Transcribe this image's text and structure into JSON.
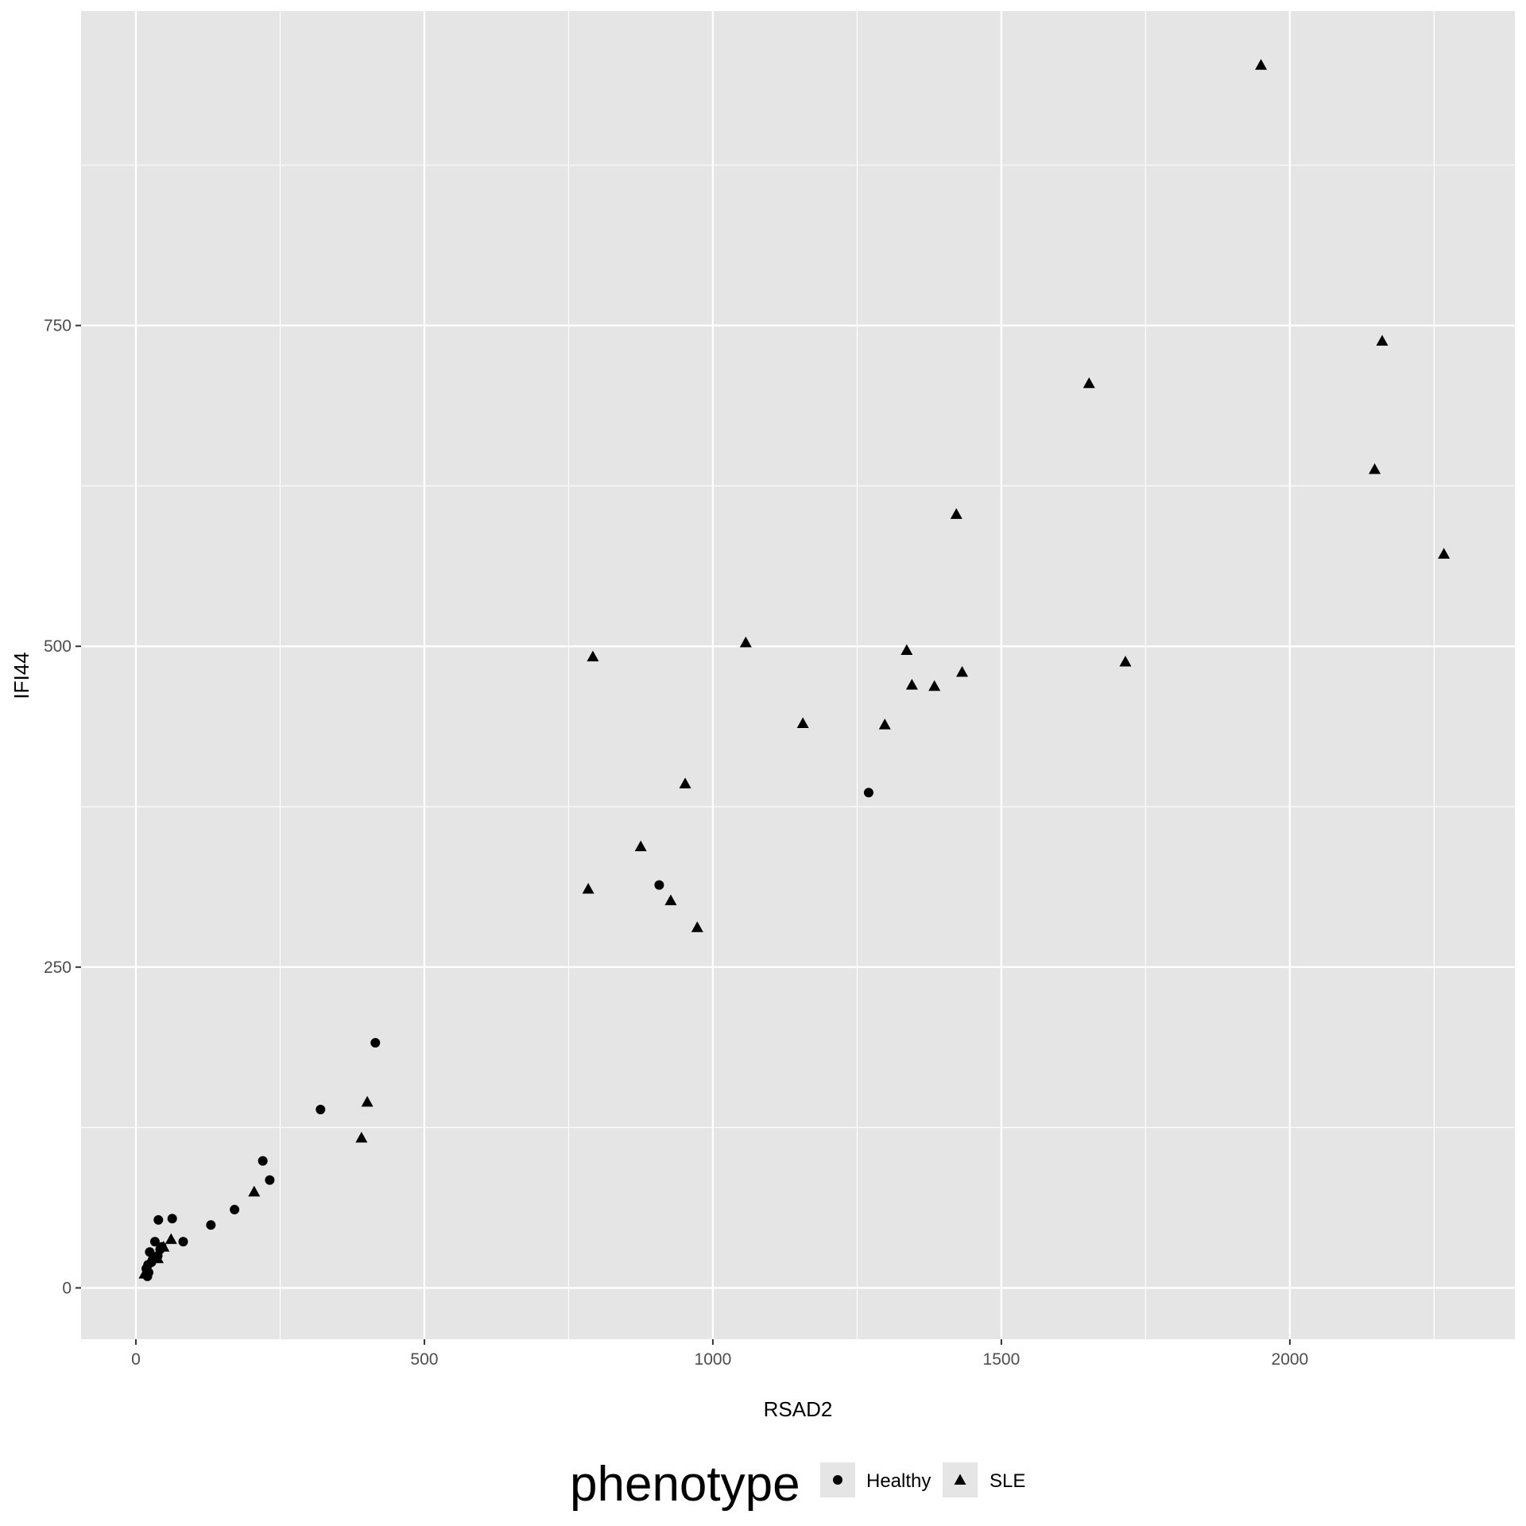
{
  "chart_data": {
    "type": "scatter",
    "title": "",
    "xlabel": "RSAD2",
    "ylabel": "IFI44",
    "xlim": [
      -95,
      2390
    ],
    "ylim": [
      -40,
      995
    ],
    "x_ticks": [
      0,
      500,
      1000,
      1500,
      2000
    ],
    "x_tick_labels": [
      "0",
      "500",
      "1000",
      "1500",
      "2000"
    ],
    "x_minor_ticks": [
      250,
      750,
      1250,
      1750,
      2250
    ],
    "y_ticks": [
      0,
      250,
      500,
      750
    ],
    "y_tick_labels": [
      "0",
      "250",
      "500",
      "750"
    ],
    "y_minor_ticks": [
      125,
      375,
      625,
      875
    ],
    "grid": true,
    "legend": {
      "title": "phenotype",
      "position": "bottom",
      "entries": [
        {
          "label": "Healthy",
          "shape": "circle"
        },
        {
          "label": "SLE",
          "shape": "triangle"
        }
      ]
    },
    "colors": {
      "panel_background": "#e5e5e5",
      "grid": "#ffffff",
      "points": "#000000",
      "legend_key_background": "#e5e5e5"
    },
    "series": [
      {
        "name": "Healthy",
        "shape": "circle",
        "points": [
          {
            "x": 39,
            "y": 53
          },
          {
            "x": 63,
            "y": 54
          },
          {
            "x": 130,
            "y": 49
          },
          {
            "x": 171,
            "y": 61
          },
          {
            "x": 82,
            "y": 36
          },
          {
            "x": 220,
            "y": 99
          },
          {
            "x": 232,
            "y": 84
          },
          {
            "x": 320,
            "y": 139
          },
          {
            "x": 415,
            "y": 191
          },
          {
            "x": 907,
            "y": 314
          },
          {
            "x": 1270,
            "y": 386
          },
          {
            "x": 33,
            "y": 36
          },
          {
            "x": 45,
            "y": 32
          },
          {
            "x": 24,
            "y": 28
          },
          {
            "x": 38,
            "y": 25
          },
          {
            "x": 29,
            "y": 22
          },
          {
            "x": 21,
            "y": 18
          },
          {
            "x": 18,
            "y": 15
          },
          {
            "x": 22,
            "y": 12
          },
          {
            "x": 20,
            "y": 9
          },
          {
            "x": 27,
            "y": 20
          },
          {
            "x": 42,
            "y": 30
          }
        ]
      },
      {
        "name": "SLE",
        "shape": "triangle",
        "points": [
          {
            "x": 1950,
            "y": 953
          },
          {
            "x": 2160,
            "y": 738
          },
          {
            "x": 1652,
            "y": 705
          },
          {
            "x": 2147,
            "y": 638
          },
          {
            "x": 1422,
            "y": 603
          },
          {
            "x": 2267,
            "y": 572
          },
          {
            "x": 1057,
            "y": 503
          },
          {
            "x": 1336,
            "y": 497
          },
          {
            "x": 792,
            "y": 492
          },
          {
            "x": 1715,
            "y": 488
          },
          {
            "x": 1432,
            "y": 480
          },
          {
            "x": 1345,
            "y": 470
          },
          {
            "x": 1384,
            "y": 469
          },
          {
            "x": 1156,
            "y": 440
          },
          {
            "x": 1298,
            "y": 439
          },
          {
            "x": 952,
            "y": 393
          },
          {
            "x": 875,
            "y": 344
          },
          {
            "x": 784,
            "y": 311
          },
          {
            "x": 927,
            "y": 302
          },
          {
            "x": 973,
            "y": 281
          },
          {
            "x": 401,
            "y": 145
          },
          {
            "x": 391,
            "y": 117
          },
          {
            "x": 205,
            "y": 75
          },
          {
            "x": 61,
            "y": 38
          },
          {
            "x": 38,
            "y": 23
          },
          {
            "x": 48,
            "y": 32
          },
          {
            "x": 15,
            "y": 11
          }
        ]
      }
    ]
  }
}
